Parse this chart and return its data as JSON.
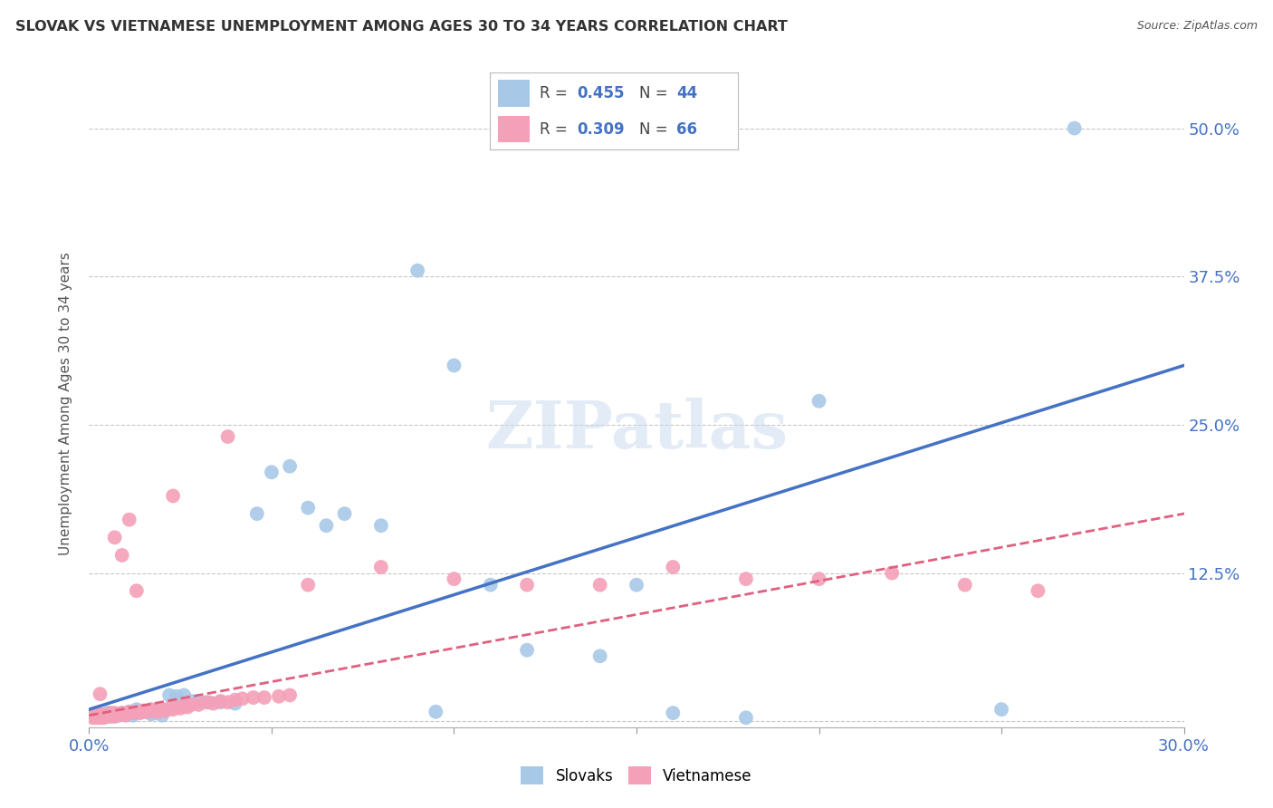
{
  "title": "SLOVAK VS VIETNAMESE UNEMPLOYMENT AMONG AGES 30 TO 34 YEARS CORRELATION CHART",
  "source": "Source: ZipAtlas.com",
  "ylabel": "Unemployment Among Ages 30 to 34 years",
  "xlim": [
    0.0,
    0.3
  ],
  "ylim": [
    -0.005,
    0.54
  ],
  "background_color": "#ffffff",
  "grid_color": "#c8c8c8",
  "slovak_color": "#a8c8e8",
  "vietnamese_color": "#f4a0b8",
  "slovak_line_color": "#4472c4",
  "vietnamese_line_color": "#e06080",
  "slovak_R": 0.455,
  "slovak_N": 44,
  "vietnamese_R": 0.309,
  "vietnamese_N": 66,
  "watermark": "ZIPatlas",
  "slovak_line_x0": 0.0,
  "slovak_line_y0": 0.01,
  "slovak_line_x1": 0.3,
  "slovak_line_y1": 0.3,
  "viet_line_x0": 0.0,
  "viet_line_y0": 0.005,
  "viet_line_x1": 0.3,
  "viet_line_y1": 0.175,
  "slovak_x": [
    0.001,
    0.002,
    0.003,
    0.004,
    0.005,
    0.006,
    0.007,
    0.008,
    0.009,
    0.01,
    0.011,
    0.012,
    0.013,
    0.015,
    0.017,
    0.018,
    0.02,
    0.022,
    0.024,
    0.026,
    0.028,
    0.03,
    0.033,
    0.036,
    0.04,
    0.046,
    0.05,
    0.055,
    0.06,
    0.065,
    0.07,
    0.08,
    0.09,
    0.095,
    0.1,
    0.11,
    0.12,
    0.14,
    0.16,
    0.2,
    0.25,
    0.27,
    0.15,
    0.18
  ],
  "slovak_y": [
    0.005,
    0.004,
    0.006,
    0.005,
    0.007,
    0.004,
    0.006,
    0.005,
    0.007,
    0.006,
    0.008,
    0.005,
    0.01,
    0.008,
    0.006,
    0.007,
    0.005,
    0.022,
    0.021,
    0.022,
    0.017,
    0.017,
    0.016,
    0.016,
    0.015,
    0.175,
    0.21,
    0.215,
    0.18,
    0.165,
    0.175,
    0.165,
    0.38,
    0.008,
    0.3,
    0.115,
    0.06,
    0.055,
    0.007,
    0.27,
    0.01,
    0.5,
    0.115,
    0.003
  ],
  "viet_x": [
    0.001,
    0.001,
    0.002,
    0.002,
    0.003,
    0.003,
    0.004,
    0.004,
    0.005,
    0.005,
    0.006,
    0.006,
    0.007,
    0.007,
    0.008,
    0.008,
    0.009,
    0.01,
    0.011,
    0.012,
    0.013,
    0.014,
    0.015,
    0.016,
    0.017,
    0.018,
    0.019,
    0.02,
    0.021,
    0.022,
    0.023,
    0.024,
    0.025,
    0.026,
    0.027,
    0.028,
    0.03,
    0.032,
    0.034,
    0.036,
    0.038,
    0.04,
    0.042,
    0.045,
    0.048,
    0.052,
    0.055,
    0.038,
    0.06,
    0.013,
    0.08,
    0.1,
    0.12,
    0.14,
    0.16,
    0.18,
    0.2,
    0.22,
    0.24,
    0.26,
    0.002,
    0.003,
    0.023,
    0.007,
    0.009,
    0.011
  ],
  "viet_y": [
    0.004,
    0.003,
    0.004,
    0.005,
    0.006,
    0.003,
    0.005,
    0.003,
    0.006,
    0.004,
    0.005,
    0.007,
    0.007,
    0.004,
    0.006,
    0.005,
    0.007,
    0.005,
    0.008,
    0.007,
    0.008,
    0.007,
    0.009,
    0.008,
    0.01,
    0.009,
    0.008,
    0.01,
    0.009,
    0.011,
    0.01,
    0.012,
    0.011,
    0.013,
    0.012,
    0.014,
    0.014,
    0.016,
    0.015,
    0.017,
    0.016,
    0.018,
    0.019,
    0.02,
    0.02,
    0.021,
    0.022,
    0.24,
    0.115,
    0.11,
    0.13,
    0.12,
    0.115,
    0.115,
    0.13,
    0.12,
    0.12,
    0.125,
    0.115,
    0.11,
    0.003,
    0.023,
    0.19,
    0.155,
    0.14,
    0.17
  ]
}
